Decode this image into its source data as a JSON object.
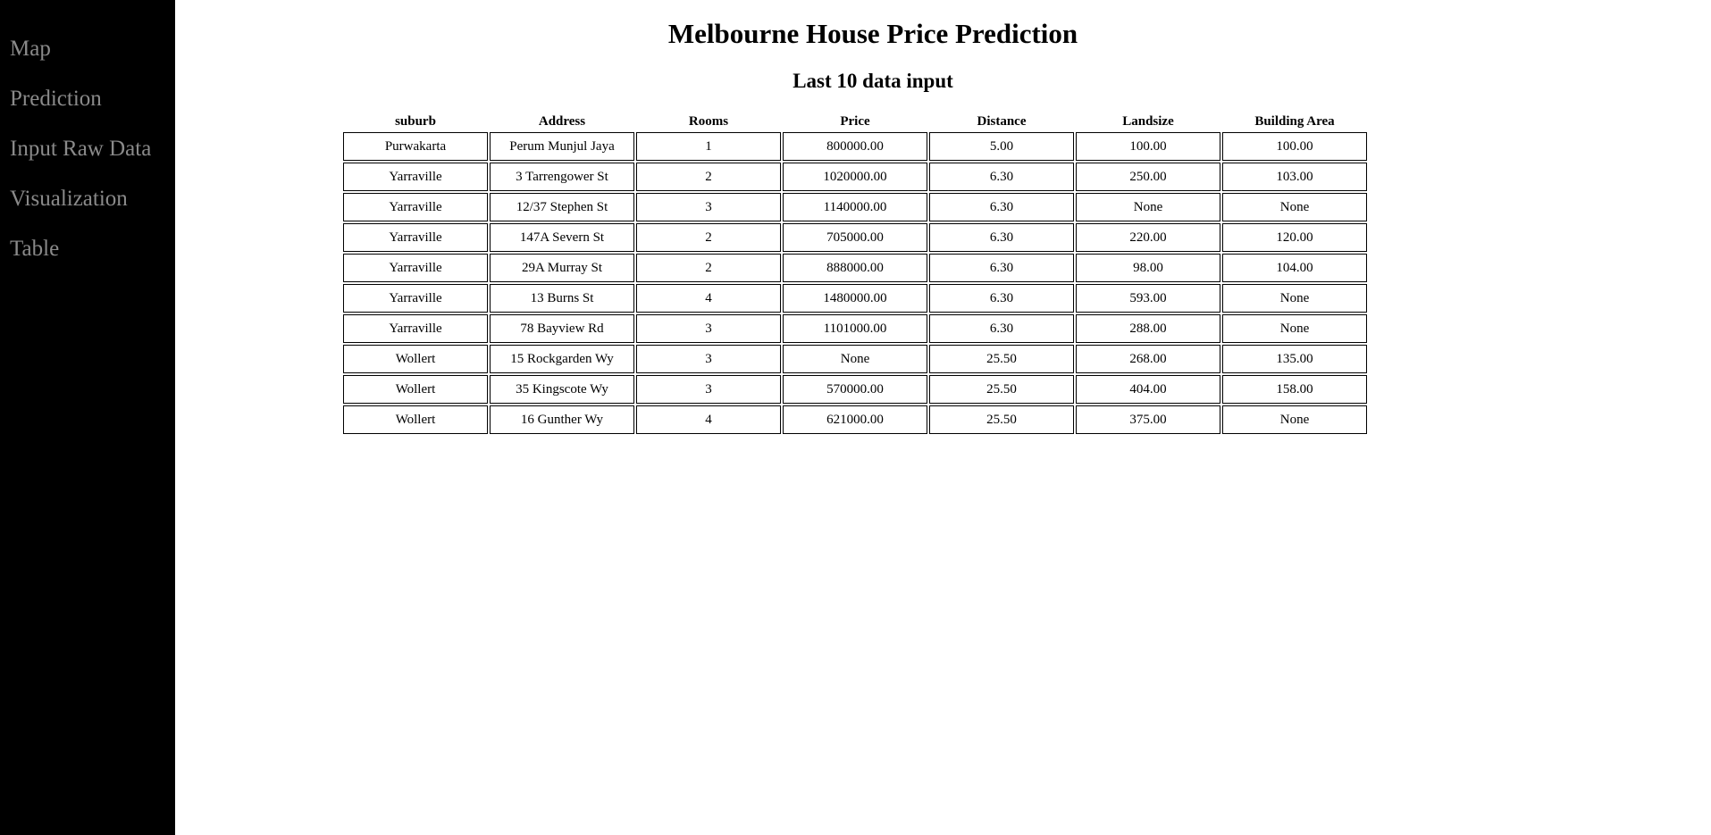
{
  "sidebar": {
    "items": [
      {
        "label": "Map"
      },
      {
        "label": "Prediction"
      },
      {
        "label": "Input Raw Data"
      },
      {
        "label": "Visualization"
      },
      {
        "label": "Table"
      }
    ]
  },
  "main": {
    "title": "Melbourne House Price Prediction",
    "subtitle": "Last 10 data input"
  },
  "table": {
    "headers": [
      "suburb",
      "Address",
      "Rooms",
      "Price",
      "Distance",
      "Landsize",
      "Building Area"
    ],
    "rows": [
      [
        "Purwakarta",
        "Perum Munjul Jaya",
        "1",
        "800000.00",
        "5.00",
        "100.00",
        "100.00"
      ],
      [
        "Yarraville",
        "3 Tarrengower St",
        "2",
        "1020000.00",
        "6.30",
        "250.00",
        "103.00"
      ],
      [
        "Yarraville",
        "12/37 Stephen St",
        "3",
        "1140000.00",
        "6.30",
        "None",
        "None"
      ],
      [
        "Yarraville",
        "147A Severn St",
        "2",
        "705000.00",
        "6.30",
        "220.00",
        "120.00"
      ],
      [
        "Yarraville",
        "29A Murray St",
        "2",
        "888000.00",
        "6.30",
        "98.00",
        "104.00"
      ],
      [
        "Yarraville",
        "13 Burns St",
        "4",
        "1480000.00",
        "6.30",
        "593.00",
        "None"
      ],
      [
        "Yarraville",
        "78 Bayview Rd",
        "3",
        "1101000.00",
        "6.30",
        "288.00",
        "None"
      ],
      [
        "Wollert",
        "15 Rockgarden Wy",
        "3",
        "None",
        "25.50",
        "268.00",
        "135.00"
      ],
      [
        "Wollert",
        "35 Kingscote Wy",
        "3",
        "570000.00",
        "25.50",
        "404.00",
        "158.00"
      ],
      [
        "Wollert",
        "16 Gunther Wy",
        "4",
        "621000.00",
        "25.50",
        "375.00",
        "None"
      ]
    ]
  }
}
